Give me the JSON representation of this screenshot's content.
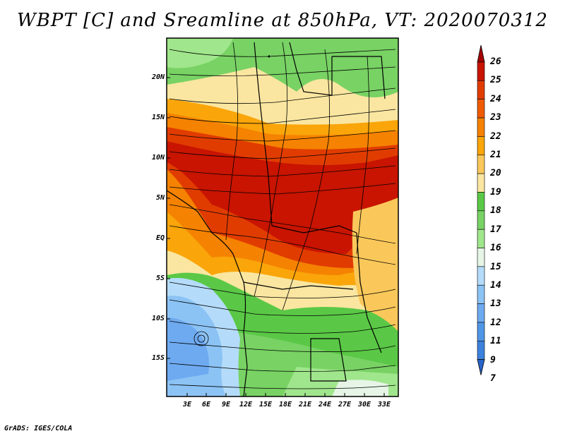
{
  "title": "WBPT [C] and Sreamline at 850hPa, VT: 2020070312",
  "y_axis_labels": [
    "20N",
    "15N",
    "10N",
    "5N",
    "EQ",
    "5S",
    "10S",
    "15S"
  ],
  "x_axis_labels": [
    "3E",
    "6E",
    "9E",
    "12E",
    "15E",
    "18E",
    "21E",
    "24E",
    "27E",
    "30E",
    "33E"
  ],
  "colorbar": {
    "labels": [
      "26",
      "25",
      "24",
      "23",
      "22",
      "21",
      "20",
      "19",
      "18",
      "17",
      "16",
      "15",
      "14",
      "13",
      "12",
      "11",
      "9",
      "7"
    ],
    "colors": [
      "#a50000",
      "#c81400",
      "#e13c00",
      "#f05a00",
      "#f58200",
      "#faa50a",
      "#fac85a",
      "#fae6a0",
      "#5ac846",
      "#78d264",
      "#a0e68c",
      "#e6f5e6",
      "#b4dcfa",
      "#8cc3f5",
      "#6eaaf0",
      "#5096e6",
      "#3c82dc",
      "#2864c8"
    ]
  },
  "credit": "GrADS: IGES/COLA"
}
